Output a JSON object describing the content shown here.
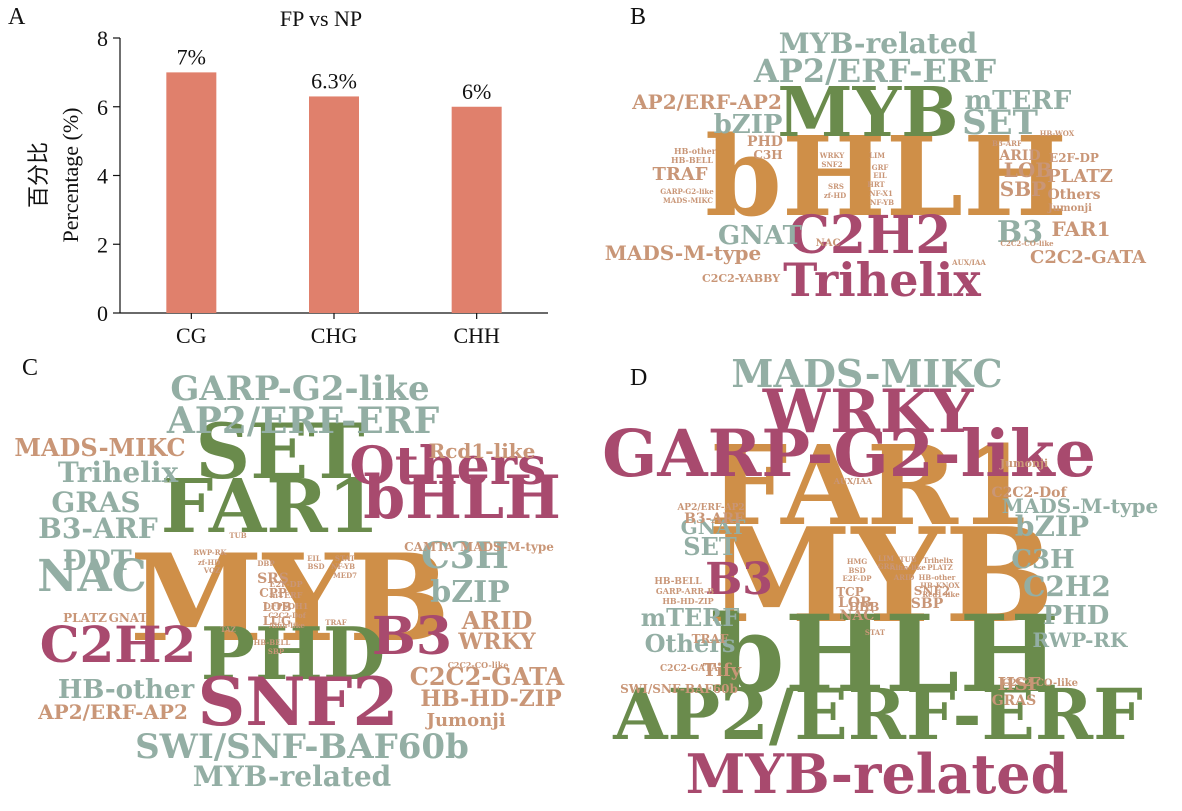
{
  "panels": {
    "a": "A",
    "b": "B",
    "c": "C",
    "d": "D"
  },
  "palette": {
    "bar": "#e0806c",
    "green": "#6a8b4c",
    "orange": "#cf8f48",
    "maroon": "#a84a6e",
    "tan": "#c99677",
    "sage": "#93aea4"
  },
  "chart_data": [
    {
      "type": "bar",
      "title": "FP vs NP",
      "ylabel_zh": "百分比",
      "ylabel": "Percentage (%)",
      "xlabel": "",
      "categories": [
        "CG",
        "CHG",
        "CHH"
      ],
      "values": [
        7,
        6.3,
        6
      ],
      "data_labels": [
        "7%",
        "6.3%",
        "6%"
      ],
      "ylim": [
        0,
        8
      ],
      "yticks": [
        0,
        2,
        4,
        6,
        8
      ],
      "grid": false
    }
  ],
  "wordclouds": {
    "b": [
      [
        "bHLH",
        "orange"
      ],
      [
        "MYB",
        "green"
      ],
      [
        "C2H2",
        "maroon"
      ],
      [
        "Trihelix",
        "maroon"
      ],
      [
        "AP2/ERF-ERF",
        "sage"
      ],
      [
        "MYB-related",
        "sage"
      ],
      [
        "SET",
        "sage"
      ],
      [
        "mTERF",
        "sage"
      ],
      [
        "bZIP",
        "sage"
      ],
      [
        "AP2/ERF-AP2",
        "tan"
      ],
      [
        "GNAT",
        "sage"
      ],
      [
        "B3",
        "sage"
      ],
      [
        "MADS-M-type",
        "tan"
      ],
      [
        "C2C2-GATA",
        "tan"
      ],
      [
        "FAR1",
        "tan"
      ],
      [
        "LOB",
        "tan"
      ],
      [
        "SBP",
        "tan"
      ],
      [
        "PLATZ",
        "tan"
      ],
      [
        "TRAF",
        "tan"
      ],
      [
        "ARID",
        "tan"
      ],
      [
        "Others",
        "tan"
      ],
      [
        "E2F-DP",
        "tan"
      ],
      [
        "PHD",
        "tan"
      ],
      [
        "C3H",
        "tan"
      ],
      [
        "NAC",
        "tan"
      ],
      [
        "C2C2-YABBY",
        "tan"
      ],
      [
        "HB-other",
        "tan"
      ],
      [
        "HB-BELL",
        "tan"
      ],
      [
        "GARP-G2-like",
        "tan"
      ],
      [
        "MADS-MIKC",
        "tan"
      ],
      [
        "WRKY",
        "tan"
      ],
      [
        "SNF2",
        "tan"
      ],
      [
        "LIM",
        "tan"
      ],
      [
        "GRF",
        "tan"
      ],
      [
        "EIL",
        "tan"
      ],
      [
        "HRT",
        "tan"
      ],
      [
        "NF-X1",
        "tan"
      ],
      [
        "NF-YB",
        "tan"
      ],
      [
        "SRS",
        "tan"
      ],
      [
        "zf-HD",
        "tan"
      ],
      [
        "B3-ARF",
        "tan"
      ],
      [
        "HB-WOX",
        "tan"
      ],
      [
        "Jumonji",
        "tan"
      ],
      [
        "C2C2-CO-like",
        "tan"
      ],
      [
        "AUX/IAA",
        "tan"
      ]
    ],
    "c": [
      [
        "MYB",
        "orange"
      ],
      [
        "SET",
        "green"
      ],
      [
        "FAR1",
        "green"
      ],
      [
        "PHD",
        "green"
      ],
      [
        "bHLH",
        "maroon"
      ],
      [
        "Others",
        "maroon"
      ],
      [
        "SNF2",
        "maroon"
      ],
      [
        "C2H2",
        "maroon"
      ],
      [
        "B3",
        "maroon"
      ],
      [
        "GARP-G2-like",
        "sage"
      ],
      [
        "AP2/ERF-ERF",
        "sage"
      ],
      [
        "NAC",
        "sage"
      ],
      [
        "SWI/SNF-BAF60b",
        "sage"
      ],
      [
        "MYB-related",
        "sage"
      ],
      [
        "Trihelix",
        "sage"
      ],
      [
        "GRAS",
        "sage"
      ],
      [
        "B3-ARF",
        "sage"
      ],
      [
        "DDT",
        "sage"
      ],
      [
        "HB-other",
        "sage"
      ],
      [
        "C3H",
        "sage"
      ],
      [
        "bZIP",
        "sage"
      ],
      [
        "MADS-MIKC",
        "tan"
      ],
      [
        "Rcd1-like",
        "tan"
      ],
      [
        "ARID",
        "tan"
      ],
      [
        "WRKY",
        "tan"
      ],
      [
        "C2C2-GATA",
        "tan"
      ],
      [
        "HB-HD-ZIP",
        "tan"
      ],
      [
        "AP2/ERF-AP2",
        "tan"
      ],
      [
        "Jumonji",
        "tan"
      ],
      [
        "CAMTA",
        "tan"
      ],
      [
        "MADS-M-type",
        "tan"
      ],
      [
        "PLATZ",
        "tan"
      ],
      [
        "GNAT",
        "tan"
      ],
      [
        "SRS",
        "tan"
      ],
      [
        "CPP",
        "tan"
      ],
      [
        "LOB",
        "tan"
      ],
      [
        "LUG",
        "tan"
      ],
      [
        "E2F-DP",
        "tan"
      ],
      [
        "mTERF",
        "tan"
      ],
      [
        "OFPSOH1",
        "tan"
      ],
      [
        "C2C2-CO-like",
        "tan"
      ],
      [
        "RWP-RK",
        "tan"
      ],
      [
        "zf-HD",
        "tan"
      ],
      [
        "TUB",
        "tan"
      ],
      [
        "DBP",
        "tan"
      ],
      [
        "EIL",
        "tan"
      ],
      [
        "STAT",
        "tan"
      ],
      [
        "NF-YB",
        "tan"
      ],
      [
        "MED7",
        "tan"
      ],
      [
        "BSD",
        "tan"
      ],
      [
        "HB-BELL",
        "tan"
      ],
      [
        "SBP",
        "tan"
      ],
      [
        "TAZ",
        "tan"
      ],
      [
        "VOZ",
        "tan"
      ],
      [
        "TRAF",
        "tan"
      ],
      [
        "C2C2-Dof",
        "tan"
      ],
      [
        "Alfin-like",
        "tan"
      ]
    ],
    "d": [
      [
        "MYB",
        "orange"
      ],
      [
        "FAR1",
        "orange"
      ],
      [
        "GARP-G2-like",
        "maroon"
      ],
      [
        "WRKY",
        "maroon"
      ],
      [
        "B3",
        "maroon"
      ],
      [
        "MYB-related",
        "maroon"
      ],
      [
        "bHLH",
        "green"
      ],
      [
        "AP2/ERF-ERF",
        "green"
      ],
      [
        "MADS-MIKC",
        "sage"
      ],
      [
        "bZIP",
        "sage"
      ],
      [
        "MADS-M-type",
        "sage"
      ],
      [
        "C3H",
        "sage"
      ],
      [
        "C2H2",
        "sage"
      ],
      [
        "PHD",
        "sage"
      ],
      [
        "RWP-RK",
        "sage"
      ],
      [
        "SET",
        "sage"
      ],
      [
        "GNAT",
        "sage"
      ],
      [
        "mTERF",
        "sage"
      ],
      [
        "Others",
        "sage"
      ],
      [
        "C2C2-Dof",
        "tan"
      ],
      [
        "Jumonji",
        "tan"
      ],
      [
        "AUX/IAA",
        "tan"
      ],
      [
        "AP2/ERF-AP2",
        "tan"
      ],
      [
        "B3-ARF",
        "tan"
      ],
      [
        "HB-BELL",
        "tan"
      ],
      [
        "GARP-ARR-B",
        "tan"
      ],
      [
        "HB-HD-ZIP",
        "tan"
      ],
      [
        "TCP",
        "tan"
      ],
      [
        "DBB",
        "tan"
      ],
      [
        "LOB",
        "tan"
      ],
      [
        "NAC",
        "tan"
      ],
      [
        "SBP",
        "tan"
      ],
      [
        "SNF2",
        "tan"
      ],
      [
        "TRAF",
        "tan"
      ],
      [
        "Tify",
        "tan"
      ],
      [
        "HSF",
        "tan"
      ],
      [
        "GRAS",
        "tan"
      ],
      [
        "C2C2-CO-like",
        "tan"
      ],
      [
        "C2C2-GATA",
        "tan"
      ],
      [
        "SWI/SNF-BAF60b",
        "tan"
      ],
      [
        "HMG",
        "tan"
      ],
      [
        "BSD",
        "tan"
      ],
      [
        "ARID",
        "tan"
      ],
      [
        "TUB",
        "tan"
      ],
      [
        "Alfin-like",
        "tan"
      ],
      [
        "HB-other",
        "tan"
      ],
      [
        "PLATZ",
        "tan"
      ],
      [
        "STAT",
        "tan"
      ],
      [
        "Trihelix",
        "tan"
      ],
      [
        "HB-KNOX",
        "tan"
      ],
      [
        "Rcd1-like",
        "tan"
      ],
      [
        "LIM",
        "tan"
      ],
      [
        "GRF",
        "tan"
      ],
      [
        "E2F-DP",
        "tan"
      ]
    ]
  }
}
